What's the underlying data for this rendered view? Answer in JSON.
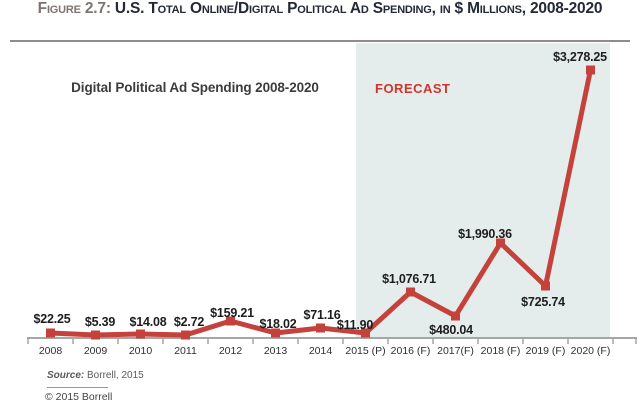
{
  "figure": {
    "label": "Figure 2.7:",
    "title": " U.S. Total Online/Digital Political Ad Spending, in $ Millions, 2008-2020"
  },
  "chart_data": {
    "type": "line",
    "title": "Digital Political Ad Spending 2008-2020",
    "forecast_label": "FORECAST",
    "categories": [
      "2008",
      "2009",
      "2010",
      "2011",
      "2012",
      "2013",
      "2014",
      "2015 (P)",
      "2016 (F)",
      "2017(F)",
      "2018 (F)",
      "2019 (F)",
      "2020 (F)"
    ],
    "values": [
      22.25,
      5.39,
      14.08,
      2.72,
      159.21,
      18.02,
      71.16,
      11.9,
      1076.71,
      480.04,
      1990.36,
      725.74,
      3278.25
    ],
    "value_labels": [
      "$22.25",
      "$5.39",
      "$14.08",
      "$2.72",
      "$159.21",
      "$18.02",
      "$71.16",
      "$11.90",
      "$1,076.71",
      "$480.04",
      "$1,990.36",
      "$725.74",
      "$3,278.25"
    ],
    "units": "$ Millions",
    "series_color": "#c5413b",
    "axis_color": "#a6a6a6",
    "forecast_region": {
      "start_category": "2015 (P)",
      "end_category": "2020 (F)",
      "background": "#e4edeb"
    },
    "ylim": [
      0,
      3400
    ],
    "grid": false,
    "legend": "none"
  },
  "footer": {
    "source_prefix": "Source:",
    "source_text": " Borrell, 2015",
    "copyright": "© 2015 Borrell"
  }
}
